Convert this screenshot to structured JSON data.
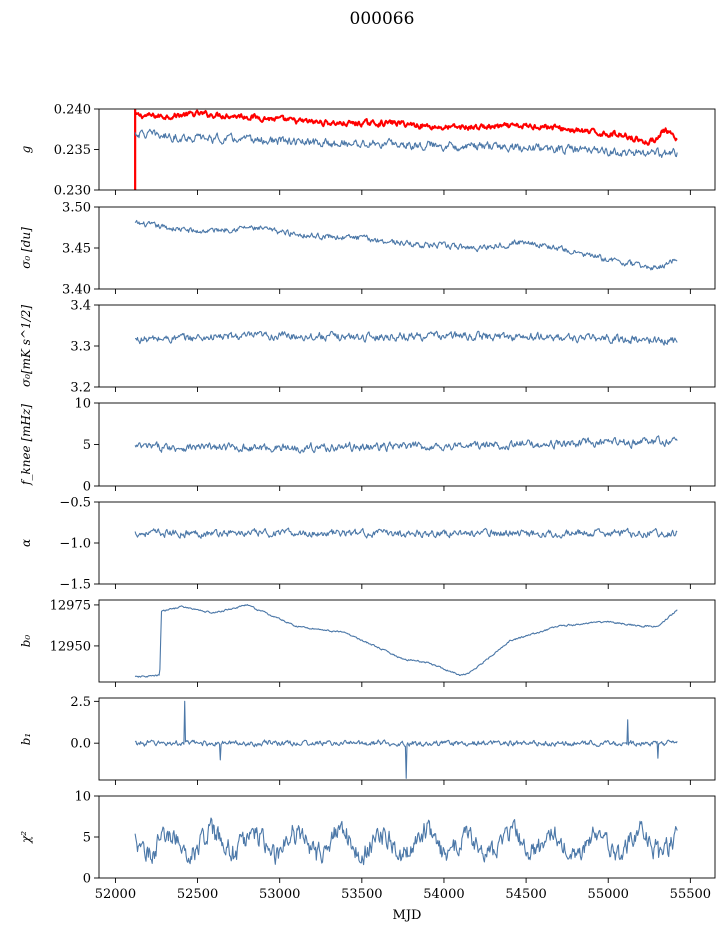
{
  "title": "000066",
  "colors": {
    "series": "#4c78a8",
    "red_series": "#ff0000"
  },
  "chart_data": [
    {
      "type": "line",
      "ylabel": "g",
      "ylabel_id": "g",
      "ylim": [
        0.23,
        0.24
      ],
      "yticks": [
        "0.230",
        "0.235",
        "0.240"
      ],
      "ytick_values": [
        0.23,
        0.235,
        0.24
      ],
      "xlim": [
        51900,
        55650
      ],
      "series": [
        {
          "color": "#ff0000",
          "x_range": [
            52120,
            55420
          ],
          "knots_x": [
            52120,
            52300,
            52500,
            52800,
            53100,
            53400,
            53700,
            54000,
            54300,
            54600,
            54900,
            55100,
            55250,
            55350,
            55420
          ],
          "knots_y": [
            0.2392,
            0.2391,
            0.2394,
            0.2391,
            0.2385,
            0.2382,
            0.2383,
            0.2377,
            0.2378,
            0.2379,
            0.2371,
            0.2368,
            0.2358,
            0.2374,
            0.236
          ],
          "noise": 0.0004
        },
        {
          "color": "#4c78a8",
          "x_range": [
            52120,
            55420
          ],
          "knots_x": [
            52120,
            52400,
            52800,
            53200,
            53600,
            54000,
            54400,
            54800,
            55200,
            55420
          ],
          "knots_y": [
            0.237,
            0.2365,
            0.2362,
            0.2358,
            0.2357,
            0.2355,
            0.2353,
            0.235,
            0.2345,
            0.2345
          ],
          "noise": 0.0006
        }
      ]
    },
    {
      "type": "line",
      "ylabel": "σ₀ [du]",
      "ylabel_id": "sigma0-du",
      "ylim": [
        3.4,
        3.5
      ],
      "yticks": [
        "3.40",
        "3.45",
        "3.50"
      ],
      "ytick_values": [
        3.4,
        3.45,
        3.5
      ],
      "xlim": [
        51900,
        55650
      ],
      "series": [
        {
          "color": "#4c78a8",
          "x_range": [
            52120,
            55420
          ],
          "knots_x": [
            52120,
            52500,
            52800,
            53200,
            53500,
            53800,
            54200,
            54500,
            54900,
            55200,
            55300,
            55420
          ],
          "knots_y": [
            3.48,
            3.47,
            3.475,
            3.465,
            3.462,
            3.455,
            3.45,
            3.458,
            3.44,
            3.428,
            3.425,
            3.438
          ],
          "noise": 0.004
        }
      ]
    },
    {
      "type": "line",
      "ylabel": "σ₀[mK s^1/2]",
      "ylabel_id": "sigma0-mk",
      "ylim": [
        3.2,
        3.4
      ],
      "yticks": [
        "3.2",
        "3.3",
        "3.4"
      ],
      "ytick_values": [
        3.2,
        3.3,
        3.4
      ],
      "xlim": [
        51900,
        55650
      ],
      "series": [
        {
          "color": "#4c78a8",
          "x_range": [
            52120,
            55420
          ],
          "knots_x": [
            52120,
            52600,
            53000,
            53500,
            54000,
            54500,
            55000,
            55420
          ],
          "knots_y": [
            3.315,
            3.322,
            3.325,
            3.322,
            3.325,
            3.322,
            3.318,
            3.312
          ],
          "noise": 0.011
        }
      ]
    },
    {
      "type": "line",
      "ylabel": "f_knee [mHz]",
      "ylabel_id": "fknee",
      "ylim": [
        0,
        10
      ],
      "yticks": [
        "0",
        "5",
        "10"
      ],
      "ytick_values": [
        0,
        5,
        10
      ],
      "xlim": [
        51900,
        55650
      ],
      "series": [
        {
          "color": "#4c78a8",
          "x_range": [
            52120,
            55420
          ],
          "knots_x": [
            52120,
            53000,
            54000,
            55000,
            55420
          ],
          "knots_y": [
            4.7,
            4.6,
            4.8,
            5.2,
            5.4
          ],
          "noise": 0.55
        }
      ]
    },
    {
      "type": "line",
      "ylabel": "α",
      "ylabel_id": "alpha",
      "ylim": [
        -1.5,
        -0.5
      ],
      "yticks": [
        "−1.5",
        "−1.0",
        "−0.5"
      ],
      "ytick_values": [
        -1.5,
        -1.0,
        -0.5
      ],
      "xlim": [
        51900,
        55650
      ],
      "series": [
        {
          "color": "#4c78a8",
          "x_range": [
            52120,
            55420
          ],
          "knots_x": [
            52120,
            55420
          ],
          "knots_y": [
            -0.88,
            -0.88
          ],
          "noise": 0.05
        }
      ]
    },
    {
      "type": "line",
      "ylabel": "b₀",
      "ylabel_id": "b0",
      "ylim": [
        12928,
        12978
      ],
      "yticks": [
        "12950",
        "12975"
      ],
      "ytick_values": [
        12950,
        12975
      ],
      "xlim": [
        51900,
        55650
      ],
      "series": [
        {
          "color": "#4c78a8",
          "x_range": [
            52120,
            55420
          ],
          "knots_x": [
            52120,
            52270,
            52280,
            52400,
            52500,
            52600,
            52800,
            53100,
            53400,
            53750,
            53900,
            54100,
            54150,
            54400,
            54700,
            55000,
            55200,
            55300,
            55420
          ],
          "knots_y": [
            12931,
            12932,
            12971,
            12974,
            12972,
            12970,
            12975,
            12962,
            12958,
            12942,
            12940,
            12932,
            12933,
            12953,
            12962,
            12965,
            12962,
            12962,
            12972
          ],
          "noise": 0.6
        }
      ]
    },
    {
      "type": "line",
      "ylabel": "b₁",
      "ylabel_id": "b1",
      "ylim": [
        -2.2,
        2.7
      ],
      "yticks": [
        "0.0",
        "2.5"
      ],
      "ytick_values": [
        0.0,
        2.5
      ],
      "xlim": [
        51900,
        55650
      ],
      "series": [
        {
          "color": "#4c78a8",
          "x_range": [
            52120,
            55420
          ],
          "knots_x": [
            52120,
            55420
          ],
          "knots_y": [
            0.0,
            0.0
          ],
          "noise": 0.18,
          "spikes": [
            [
              52420,
              2.5
            ],
            [
              53770,
              -2.1
            ],
            [
              55120,
              1.4
            ],
            [
              52640,
              -1.0
            ],
            [
              55300,
              -0.9
            ]
          ]
        }
      ]
    },
    {
      "type": "line",
      "ylabel": "χ²",
      "ylabel_id": "chi2",
      "ylim": [
        0,
        10
      ],
      "yticks": [
        "0",
        "5",
        "10"
      ],
      "ytick_values": [
        0,
        5,
        10
      ],
      "xlim": [
        51900,
        55650
      ],
      "xlabel": "MJD",
      "xticks": [
        "52000",
        "52500",
        "53000",
        "53500",
        "54000",
        "54500",
        "55000",
        "55500"
      ],
      "xtick_values": [
        52000,
        52500,
        53000,
        53500,
        54000,
        54500,
        55000,
        55500
      ],
      "series": [
        {
          "color": "#4c78a8",
          "x_range": [
            52120,
            55420
          ],
          "knots_x": [
            52120,
            55420
          ],
          "knots_y": [
            4.3,
            4.3
          ],
          "noise": 1.4,
          "wave_amp": 1.6,
          "wave_period": 260
        }
      ]
    }
  ]
}
